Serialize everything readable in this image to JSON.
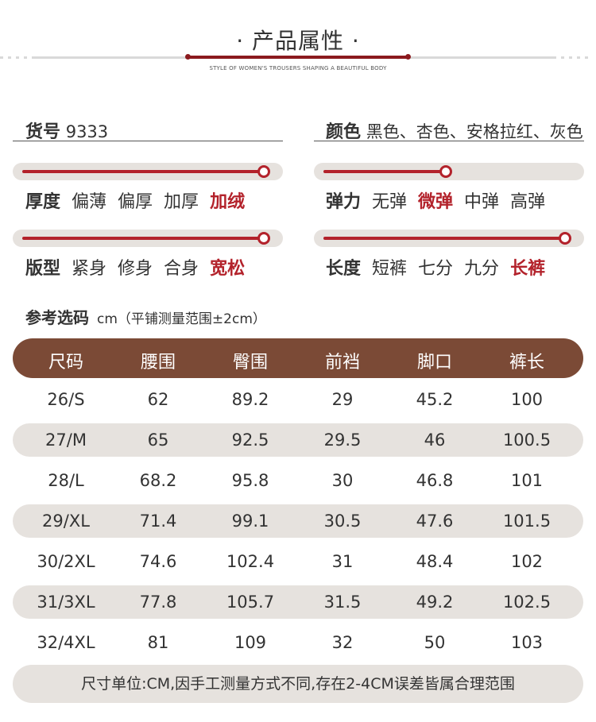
{
  "header": {
    "title": "· 产品属性 ·",
    "subtitle": "STYLE OF WOMEN'S TROUSERS SHAPING A BEAUTIFUL BODY"
  },
  "attributes": {
    "item_no_label": "货号",
    "item_no_value": "9333",
    "color_label": "颜色",
    "color_value": "黑色、杏色、安格拉红、灰色"
  },
  "accent_color": "#b3222b",
  "table_header_color": "#7b4a36",
  "sliders": [
    {
      "label": "厚度",
      "options": [
        "偏薄",
        "偏厚",
        "加厚",
        "加绒"
      ],
      "selected": 3,
      "level": 1.0
    },
    {
      "label": "弹力",
      "options": [
        "无弹",
        "微弹",
        "中弹",
        "高弹"
      ],
      "selected": 1,
      "level": 0.5
    },
    {
      "label": "版型",
      "options": [
        "紧身",
        "修身",
        "合身",
        "宽松"
      ],
      "selected": 3,
      "level": 1.0
    },
    {
      "label": "长度",
      "options": [
        "短裤",
        "七分",
        "九分",
        "长裤"
      ],
      "selected": 3,
      "level": 1.0
    }
  ],
  "size_section": {
    "title": "参考选码",
    "unit_note": "cm（平铺测量范围±2cm）",
    "headers": [
      "尺码",
      "腰围",
      "臀围",
      "前裆",
      "脚口",
      "裤长"
    ],
    "rows": [
      [
        "26/S",
        "62",
        "89.2",
        "29",
        "45.2",
        "100"
      ],
      [
        "27/M",
        "65",
        "92.5",
        "29.5",
        "46",
        "100.5"
      ],
      [
        "28/L",
        "68.2",
        "95.8",
        "30",
        "46.8",
        "101"
      ],
      [
        "29/XL",
        "71.4",
        "99.1",
        "30.5",
        "47.6",
        "101.5"
      ],
      [
        "30/2XL",
        "74.6",
        "102.4",
        "31",
        "48.4",
        "102"
      ],
      [
        "31/3XL",
        "77.8",
        "105.7",
        "31.5",
        "49.2",
        "102.5"
      ],
      [
        "32/4XL",
        "81",
        "109",
        "32",
        "50",
        "103"
      ]
    ],
    "note": "尺寸单位:CM,因手工测量方式不同,存在2-4CM误差皆属合理范围"
  }
}
